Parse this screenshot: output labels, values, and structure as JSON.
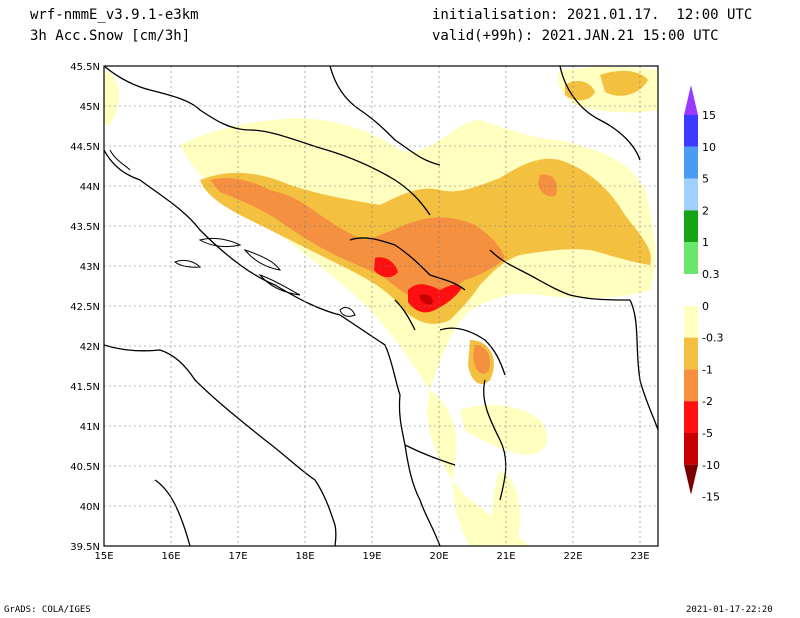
{
  "header": {
    "model": "wrf-nmmE_v3.9.1-e3km",
    "variable": "3h Acc.Snow [cm/3h]",
    "init": "initialisation: 2021.01.17.  12:00 UTC",
    "valid": "valid(+99h): 2021.JAN.21 15:00 UTC"
  },
  "footer": {
    "left": "GrADS: COLA/IGES",
    "right": "2021-01-17-22:20"
  },
  "axes": {
    "lat_ticks": [
      "45.5N",
      "45N",
      "44.5N",
      "44N",
      "43.5N",
      "43N",
      "42.5N",
      "42N",
      "41.5N",
      "41N",
      "40.5N",
      "40N",
      "39.5N"
    ],
    "lon_ticks": [
      "15E",
      "16E",
      "17E",
      "18E",
      "19E",
      "20E",
      "21E",
      "22E",
      "23E"
    ]
  },
  "colorbar": {
    "labels": [
      "15",
      "10",
      "5",
      "2",
      "1",
      "0.3",
      "0",
      "-0.3",
      "-1",
      "-2",
      "-5",
      "-10",
      "-15"
    ],
    "colors": [
      "#9a39ff",
      "#3a3aff",
      "#4a9cf0",
      "#a0d0ff",
      "#16a316",
      "#6ae66a",
      "#ffffff",
      "#ffffc0",
      "#f4c040",
      "#f59040",
      "#ff1010",
      "#c80000",
      "#7a0000"
    ]
  },
  "icons": {
    "map": "map-canvas",
    "colorbar": "colorbar-icon"
  }
}
